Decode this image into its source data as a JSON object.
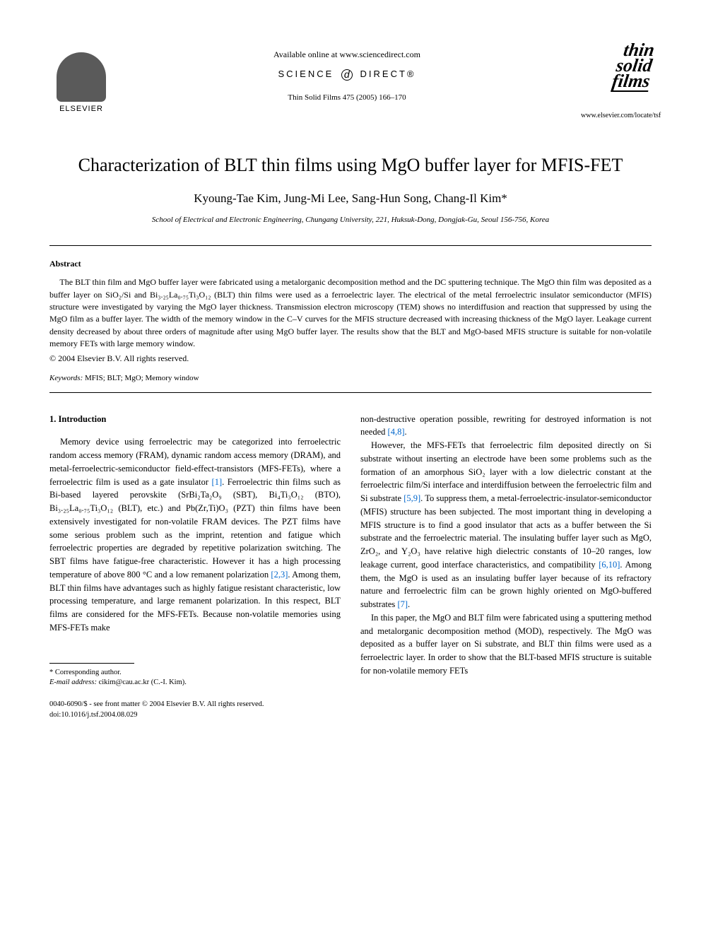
{
  "header": {
    "publisher_name": "ELSEVIER",
    "available_online": "Available online at www.sciencedirect.com",
    "science_left": "SCIENCE",
    "science_right": "DIRECT®",
    "journal_citation": "Thin Solid Films 475 (2005) 166–170",
    "journal_logo_line1": "thin",
    "journal_logo_line2": "solid",
    "journal_logo_line3": "films",
    "journal_url": "www.elsevier.com/locate/tsf"
  },
  "title": "Characterization of BLT thin films using MgO buffer layer for MFIS-FET",
  "authors": "Kyoung-Tae Kim, Jung-Mi Lee, Sang-Hun Song, Chang-Il Kim*",
  "affiliation": "School of Electrical and Electronic Engineering, Chungang University, 221, Huksuk-Dong, Dongjak-Gu, Seoul 156-756, Korea",
  "abstract": {
    "heading": "Abstract",
    "text": "The BLT thin film and MgO buffer layer were fabricated using a metalorganic decomposition method and the DC sputtering technique. The MgO thin film was deposited as a buffer layer on SiO₂/Si and Bi₃.₂₅La₀.₇₅Ti₃O₁₂ (BLT) thin films were used as a ferroelectric layer. The electrical of the metal ferroelectric insulator semiconductor (MFIS) structure were investigated by varying the MgO layer thickness. Transmission electron microscopy (TEM) shows no interdiffusion and reaction that suppressed by using the MgO film as a buffer layer. The width of the memory window in the C–V curves for the MFIS structure decreased with increasing thickness of the MgO layer. Leakage current density decreased by about three orders of magnitude after using MgO buffer layer. The results show that the BLT and MgO-based MFIS structure is suitable for non-volatile memory FETs with large memory window.",
    "copyright": "© 2004 Elsevier B.V. All rights reserved."
  },
  "keywords": {
    "label": "Keywords:",
    "text": " MFIS; BLT; MgO; Memory window"
  },
  "section1": {
    "heading": "1. Introduction",
    "col1_p1_a": "Memory device using ferroelectric may be categorized into ferroelectric random access memory (FRAM), dynamic random access memory (DRAM), and metal-ferroelectric-semiconductor field-effect-transistors (MFS-FETs), where a ferroelectric film is used as a gate insulator ",
    "ref1": "[1]",
    "col1_p1_b": ". Ferroelectric thin films such as Bi-based layered perovskite (SrBi₂Ta₂O₉ (SBT), Bi₄Ti₃O₁₂ (BTO), Bi₃.₂₅La₀.₇₅Ti₃O₁₂ (BLT), etc.) and Pb(Zr,Ti)O₃ (PZT) thin films have been extensively investigated for non-volatile FRAM devices. The PZT films have some serious problem such as the imprint, retention and fatigue which ferroelectric properties are degraded by repetitive polarization switching. The SBT films have fatigue-free characteristic. However it has a high processing temperature of above 800 °C and a low remanent polarization ",
    "ref23": "[2,3]",
    "col1_p1_c": ". Among them, BLT thin films have advantages such as highly fatigue resistant characteristic, low processing temperature, and large remanent polarization. In this respect, BLT films are considered for the MFS-FETs. Because non-volatile memories using MFS-FETs make ",
    "col2_p1_a": "non-destructive operation possible, rewriting for destroyed information is not needed ",
    "ref48": "[4,8]",
    "col2_p1_b": ".",
    "col2_p2_a": "However, the MFS-FETs that ferroelectric film deposited directly on Si substrate without inserting an electrode have been some problems such as the formation of an amorphous SiO₂ layer with a low dielectric constant at the ferroelectric film/Si interface and interdiffusion between the ferroelectric film and Si substrate ",
    "ref59": "[5,9]",
    "col2_p2_b": ". To suppress them, a metal-ferroelectric-insulator-semiconductor (MFIS) structure has been subjected. The most important thing in developing a MFIS structure is to find a good insulator that acts as a buffer between the Si substrate and the ferroelectric material. The insulating buffer layer such as MgO, ZrO₂, and Y₂O₃ have relative high dielectric constants of 10–20 ranges, low leakage current, good interface characteristics, and compatibility ",
    "ref610": "[6,10]",
    "col2_p2_c": ". Among them, the MgO is used as an insulating buffer layer because of its refractory nature and ferroelectric film can be grown highly oriented on MgO-buffered substrates ",
    "ref7": "[7]",
    "col2_p2_d": ".",
    "col2_p3": "In this paper, the MgO and BLT film were fabricated using a sputtering method and metalorganic decomposition method (MOD), respectively. The MgO was deposited as a buffer layer on Si substrate, and BLT thin films were used as a ferroelectric layer. In order to show that the BLT-based MFIS structure is suitable for non-volatile memory FETs"
  },
  "footnote": {
    "corresponding": "* Corresponding author.",
    "email_label": "E-mail address:",
    "email": " cikim@cau.ac.kr (C.-I. Kim)."
  },
  "bottom": {
    "issn": "0040-6090/$ - see front matter © 2004 Elsevier B.V. All rights reserved.",
    "doi": "doi:10.1016/j.tsf.2004.08.029"
  },
  "colors": {
    "link": "#0066cc",
    "text": "#000000",
    "background": "#ffffff"
  },
  "typography": {
    "title_fontsize": 26,
    "authors_fontsize": 17,
    "body_fontsize": 12.5,
    "abstract_fontsize": 12,
    "footnote_fontsize": 10.5
  }
}
